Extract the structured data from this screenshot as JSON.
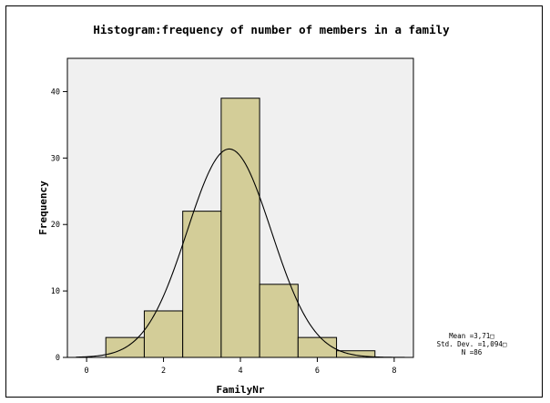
{
  "chart_data": {
    "type": "histogram",
    "title": "Histogram:frequency of number of members in a family",
    "xlabel": "FamilyNr",
    "ylabel": "Frequency",
    "xlim": [
      -0.5,
      8.5
    ],
    "ylim": [
      0,
      45
    ],
    "xticks": [
      0,
      2,
      4,
      6,
      8
    ],
    "yticks": [
      0,
      10,
      20,
      30,
      40
    ],
    "bins": [
      {
        "x0": 0.5,
        "x1": 1.5,
        "count": 3
      },
      {
        "x0": 1.5,
        "x1": 2.5,
        "count": 7
      },
      {
        "x0": 2.5,
        "x1": 3.5,
        "count": 22
      },
      {
        "x0": 3.5,
        "x1": 4.5,
        "count": 39
      },
      {
        "x0": 4.5,
        "x1": 5.5,
        "count": 11
      },
      {
        "x0": 5.5,
        "x1": 6.5,
        "count": 3
      },
      {
        "x0": 6.5,
        "x1": 7.5,
        "count": 1
      }
    ],
    "normal_curve": {
      "mean": 3.71,
      "sd": 1.094,
      "n": 86,
      "bin_width": 1
    },
    "stats": {
      "mean_label": "Mean =3,71□",
      "sd_label": "Std. Dev. =1,094□",
      "n_label": "N =86"
    },
    "grid": false,
    "colors": {
      "bar_fill": "#d3cd98",
      "bar_stroke": "#000000",
      "plot_bg": "#f0f0f0",
      "curve": "#000000"
    }
  }
}
